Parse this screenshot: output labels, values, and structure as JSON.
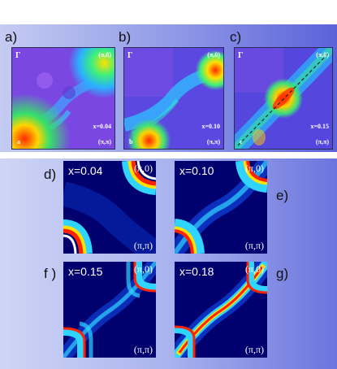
{
  "figure": {
    "top_panels": [
      {
        "letter": "a)",
        "gamma": "Γ",
        "corner_top": "(π,0)",
        "corner_bottom": "(π,π)",
        "x_label": "x=0.04",
        "sub": "a"
      },
      {
        "letter": "b)",
        "gamma": "Γ",
        "corner_top": "(π,0)",
        "corner_bottom": "(π,π)",
        "x_label": "x=0.10",
        "sub": "b"
      },
      {
        "letter": "c)",
        "gamma": "Γ",
        "corner_top": "(π,0)",
        "corner_bottom": "(π,π)",
        "x_label": "x=0.15",
        "sub": "c"
      }
    ],
    "bottom_panels": [
      {
        "letter": "d)",
        "x_label": "x=0.04",
        "corner_top": "(π,0)",
        "corner_bottom": "(π,π)"
      },
      {
        "letter": "e)",
        "x_label": "x=0.10",
        "corner_top": "(π,0)",
        "corner_bottom": "(π,π)"
      },
      {
        "letter": "f )",
        "x_label": "x=0.15",
        "corner_top": "(π,0)",
        "corner_bottom": "(π,π)"
      },
      {
        "letter": "g)",
        "x_label": "x=0.18",
        "corner_top": "(π,0)",
        "corner_bottom": "(π,π)"
      }
    ]
  }
}
